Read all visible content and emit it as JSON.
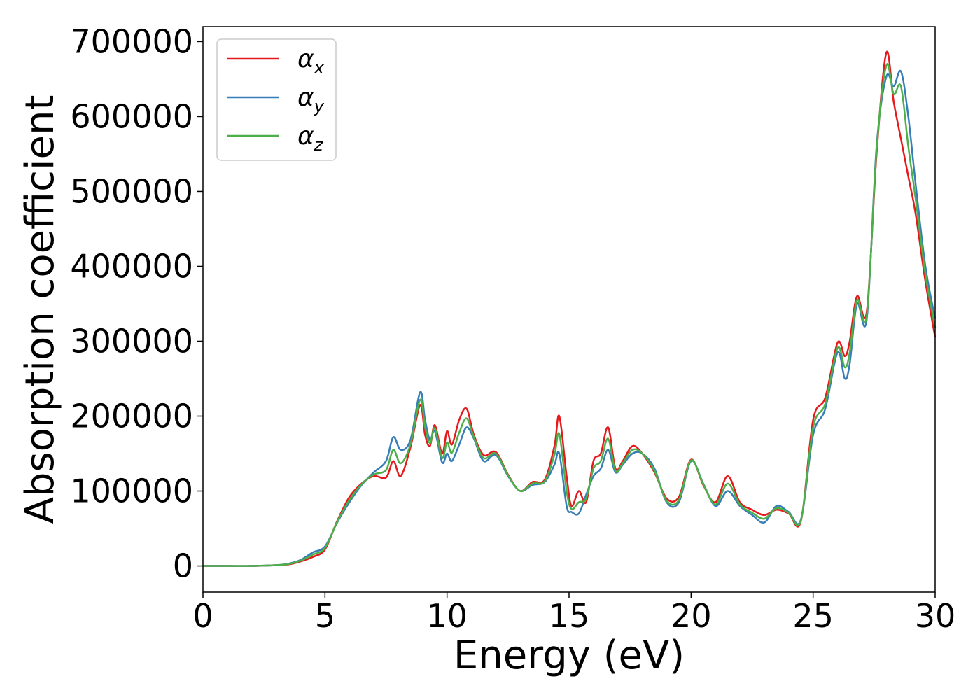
{
  "chart_data": {
    "type": "line",
    "xlabel": "Energy (eV)",
    "ylabel": "Absorption coefficient",
    "xlim": [
      0,
      30
    ],
    "ylim": [
      -35000,
      720000
    ],
    "xticks": [
      0,
      5,
      10,
      15,
      20,
      25,
      30
    ],
    "xtick_labels": [
      "0",
      "5",
      "10",
      "15",
      "20",
      "25",
      "30"
    ],
    "yticks": [
      0,
      100000,
      200000,
      300000,
      400000,
      500000,
      600000,
      700000
    ],
    "ytick_labels": [
      "0",
      "100000",
      "200000",
      "300000",
      "400000",
      "500000",
      "600000",
      "700000"
    ],
    "grid": false,
    "legend_position": "top-left",
    "series": [
      {
        "name": "α",
        "subscript": "x",
        "color": "#e41a1c",
        "x": [
          0,
          1,
          2,
          3,
          3.5,
          4,
          4.5,
          5,
          5.5,
          6,
          6.5,
          7,
          7.5,
          7.8,
          8.1,
          8.5,
          8.9,
          9.1,
          9.3,
          9.5,
          9.8,
          10,
          10.2,
          10.5,
          10.8,
          11.1,
          11.5,
          12,
          12.5,
          13,
          13.5,
          14,
          14.4,
          14.6,
          14.9,
          15.1,
          15.4,
          15.7,
          16,
          16.3,
          16.6,
          16.9,
          17.2,
          17.6,
          18,
          18.5,
          19,
          19.5,
          20,
          20.5,
          21,
          21.5,
          22,
          22.5,
          23,
          23.5,
          24,
          24.5,
          25,
          25.5,
          26,
          26.3,
          26.5,
          26.8,
          27.2,
          27.6,
          28,
          28.3,
          28.6,
          28.9,
          29.2,
          29.6,
          30
        ],
        "y": [
          0,
          0,
          0,
          1000,
          2000,
          6000,
          12000,
          22000,
          60000,
          92000,
          110000,
          120000,
          118000,
          140000,
          120000,
          158000,
          215000,
          175000,
          160000,
          188000,
          150000,
          180000,
          162000,
          195000,
          210000,
          175000,
          148000,
          152000,
          122000,
          100000,
          112000,
          115000,
          160000,
          200000,
          120000,
          80000,
          100000,
          85000,
          140000,
          150000,
          185000,
          130000,
          140000,
          160000,
          150000,
          125000,
          90000,
          92000,
          142000,
          108000,
          85000,
          120000,
          85000,
          75000,
          68000,
          75000,
          70000,
          60000,
          195000,
          225000,
          298000,
          280000,
          300000,
          360000,
          340000,
          550000,
          685000,
          620000,
          570000,
          520000,
          470000,
          380000,
          305000
        ]
      },
      {
        "name": "α",
        "subscript": "y",
        "color": "#377eb8",
        "x": [
          0,
          1,
          2,
          3,
          3.5,
          4,
          4.5,
          5,
          5.5,
          6,
          6.5,
          7,
          7.5,
          7.8,
          8.1,
          8.5,
          8.9,
          9.1,
          9.3,
          9.5,
          9.8,
          10,
          10.2,
          10.5,
          10.8,
          11.1,
          11.5,
          12,
          12.5,
          13,
          13.5,
          14,
          14.4,
          14.6,
          14.9,
          15.1,
          15.4,
          15.7,
          16,
          16.3,
          16.6,
          16.9,
          17.2,
          17.6,
          18,
          18.5,
          19,
          19.5,
          20,
          20.5,
          21,
          21.5,
          22,
          22.5,
          23,
          23.5,
          24,
          24.5,
          25,
          25.5,
          26,
          26.3,
          26.5,
          26.8,
          27.2,
          27.6,
          28,
          28.3,
          28.6,
          28.9,
          29.2,
          29.6,
          30
        ],
        "y": [
          0,
          0,
          0,
          1000,
          3000,
          8000,
          18000,
          26000,
          58000,
          85000,
          108000,
          125000,
          140000,
          172000,
          155000,
          168000,
          232000,
          195000,
          168000,
          180000,
          138000,
          150000,
          140000,
          162000,
          185000,
          170000,
          140000,
          148000,
          120000,
          100000,
          108000,
          112000,
          135000,
          150000,
          80000,
          72000,
          70000,
          95000,
          120000,
          130000,
          155000,
          125000,
          135000,
          150000,
          150000,
          130000,
          85000,
          85000,
          140000,
          110000,
          80000,
          100000,
          80000,
          68000,
          58000,
          80000,
          72000,
          62000,
          175000,
          210000,
          285000,
          250000,
          270000,
          350000,
          330000,
          560000,
          653000,
          640000,
          660000,
          600000,
          510000,
          400000,
          330000
        ]
      },
      {
        "name": "α",
        "subscript": "z",
        "color": "#4daf4a",
        "x": [
          0,
          1,
          2,
          3,
          3.5,
          4,
          4.5,
          5,
          5.5,
          6,
          6.5,
          7,
          7.5,
          7.8,
          8.1,
          8.5,
          8.9,
          9.1,
          9.3,
          9.5,
          9.8,
          10,
          10.2,
          10.5,
          10.8,
          11.1,
          11.5,
          12,
          12.5,
          13,
          13.5,
          14,
          14.4,
          14.6,
          14.9,
          15.1,
          15.4,
          15.7,
          16,
          16.3,
          16.6,
          16.9,
          17.2,
          17.6,
          18,
          18.5,
          19,
          19.5,
          20,
          20.5,
          21,
          21.5,
          22,
          22.5,
          23,
          23.5,
          24,
          24.5,
          25,
          25.5,
          26,
          26.3,
          26.5,
          26.8,
          27.2,
          27.6,
          28,
          28.3,
          28.6,
          28.9,
          29.2,
          29.6,
          30
        ],
        "y": [
          0,
          0,
          0,
          1000,
          2500,
          7000,
          15000,
          24000,
          59000,
          88000,
          109000,
          122000,
          128000,
          155000,
          137000,
          162000,
          222000,
          185000,
          164000,
          184000,
          144000,
          165000,
          151000,
          178000,
          197000,
          172000,
          144000,
          150000,
          121000,
          100000,
          110000,
          113000,
          148000,
          176000,
          100000,
          76000,
          85000,
          90000,
          130000,
          140000,
          170000,
          127000,
          137000,
          155000,
          150000,
          127000,
          87000,
          88000,
          141000,
          109000,
          82000,
          110000,
          82000,
          71000,
          63000,
          77000,
          71000,
          61000,
          185000,
          217000,
          291000,
          265000,
          285000,
          355000,
          335000,
          555000,
          668000,
          630000,
          640000,
          560000,
          490000,
          390000,
          318000
        ]
      }
    ]
  }
}
